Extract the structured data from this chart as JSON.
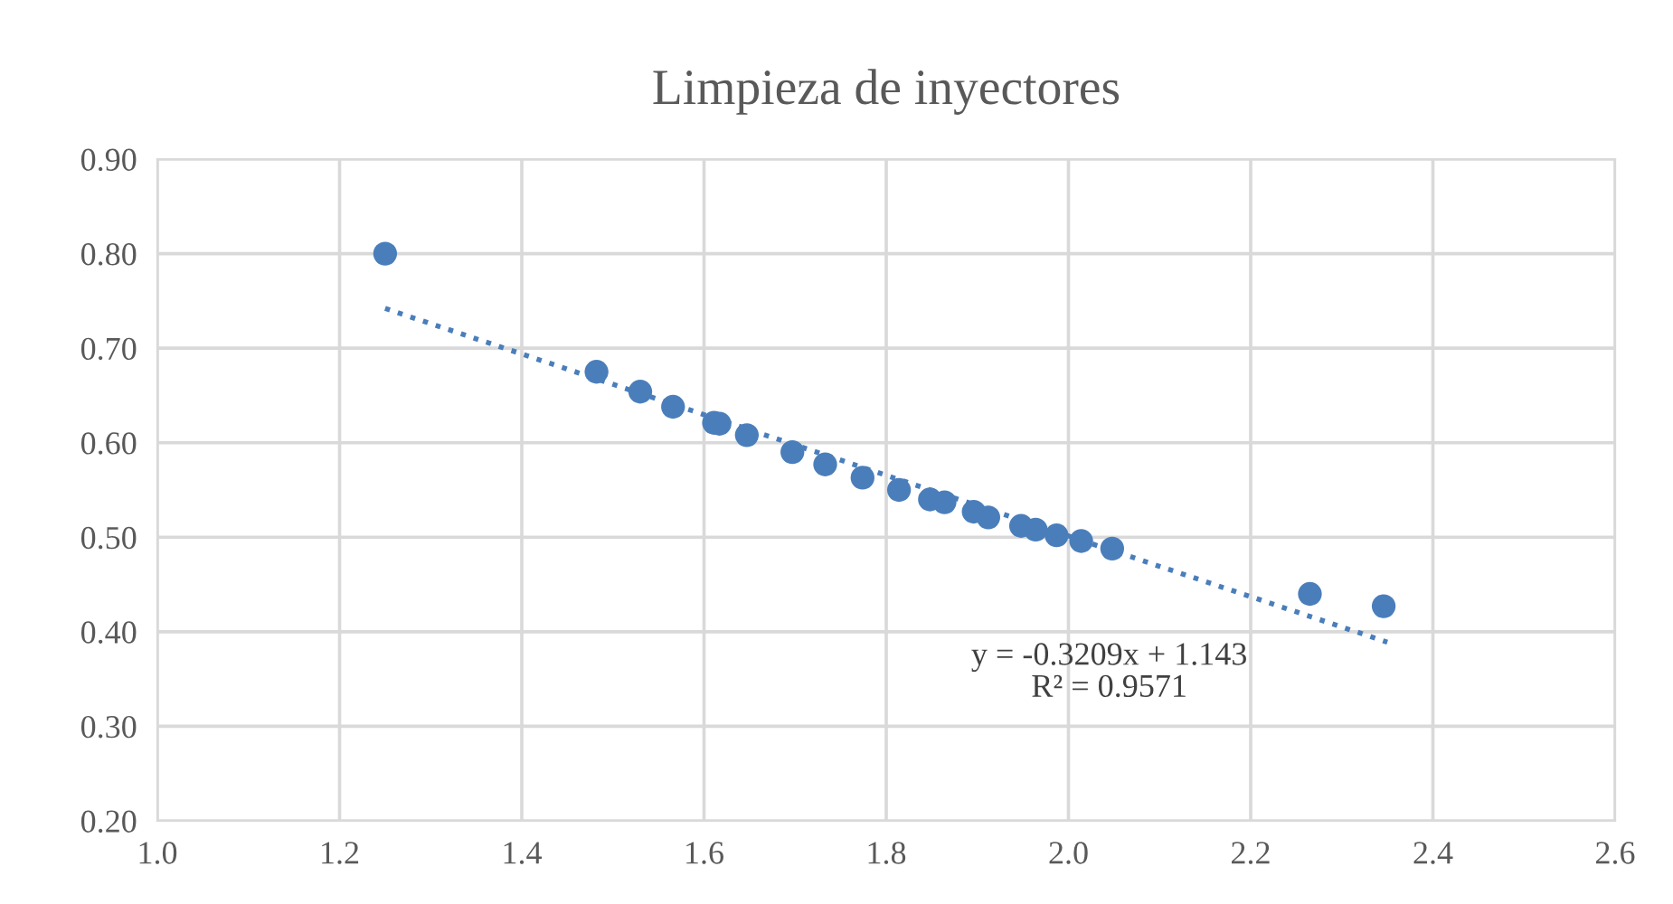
{
  "chart_data": {
    "type": "scatter",
    "title": "Limpieza de inyectores",
    "xlim": [
      1.0,
      2.6
    ],
    "xticks": [
      {
        "value": 1.0,
        "label": "1.0"
      },
      1.2,
      1.4,
      1.6,
      1.8,
      {
        "value": 2.0,
        "label": "2.0"
      },
      2.2,
      2.4,
      2.6
    ],
    "ylim": [
      0.2,
      0.9
    ],
    "yticks": [
      {
        "value": 0.2,
        "label": "0.20"
      },
      {
        "value": 0.3,
        "label": "0.30"
      },
      {
        "value": 0.4,
        "label": "0.40"
      },
      {
        "value": 0.5,
        "label": "0.50"
      },
      {
        "value": 0.6,
        "label": "0.60"
      },
      {
        "value": 0.7,
        "label": "0.70"
      },
      {
        "value": 0.8,
        "label": "0.80"
      },
      {
        "value": 0.9,
        "label": "0.90"
      }
    ],
    "grid": true,
    "series": [
      {
        "marker": "circle",
        "color": "#4a7ebb",
        "x": [
          1.25,
          1.482,
          1.53,
          1.566,
          1.611,
          1.617,
          1.647,
          1.697,
          1.733,
          1.774,
          1.814,
          1.848,
          1.864,
          1.896,
          1.912,
          1.948,
          1.964,
          1.987,
          2.014,
          2.048,
          2.265,
          2.346
        ],
        "values": [
          0.8,
          0.675,
          0.654,
          0.638,
          0.621,
          0.62,
          0.608,
          0.59,
          0.577,
          0.563,
          0.55,
          0.54,
          0.537,
          0.527,
          0.521,
          0.512,
          0.508,
          0.502,
          0.496,
          0.488,
          0.44,
          0.427
        ]
      },
      {
        "type": "line",
        "line_style": "dotted",
        "marker": "none",
        "color": "#4a7ebb",
        "x": [
          1.25,
          2.35
        ],
        "values": [
          0.742,
          0.389
        ]
      }
    ],
    "annotations": [
      "y = -0.3209x + 1.143\nR² = 0.9571"
    ]
  }
}
